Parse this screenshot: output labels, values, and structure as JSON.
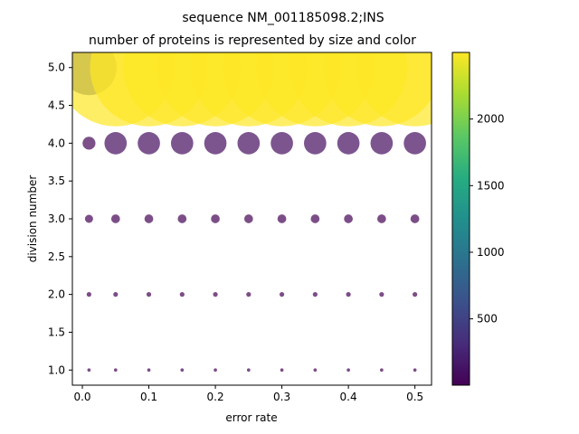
{
  "chart_data": {
    "type": "scatter",
    "title": "sequence NM_001185098.2;INS",
    "subtitle": "number of proteins is represented by size and color",
    "xlabel": "error rate",
    "ylabel": "division number",
    "xlim": [
      -0.015,
      0.525
    ],
    "ylim": [
      0.8,
      5.2
    ],
    "xticks": [
      0.0,
      0.1,
      0.2,
      0.3,
      0.4,
      0.5
    ],
    "xtick_labels": [
      "0.0",
      "0.1",
      "0.2",
      "0.3",
      "0.4",
      "0.5"
    ],
    "yticks": [
      1.0,
      1.5,
      2.0,
      2.5,
      3.0,
      3.5,
      4.0,
      4.5,
      5.0
    ],
    "ytick_labels": [
      "1.0",
      "1.5",
      "2.0",
      "2.5",
      "3.0",
      "3.5",
      "4.0",
      "4.5",
      "5.0"
    ],
    "colorbar": {
      "colormap": "viridis",
      "range": [
        2,
        2500
      ],
      "ticks": [
        500,
        1000,
        1500,
        2000
      ],
      "tick_labels": [
        "500",
        "1000",
        "1500",
        "2000"
      ]
    },
    "marker_alpha": 0.7,
    "grid": false,
    "legend": "none",
    "x": [
      0.01,
      0.05,
      0.1,
      0.15,
      0.2,
      0.25,
      0.3,
      0.35,
      0.4,
      0.45,
      0.5
    ],
    "series": [
      {
        "division": 1,
        "values": [
          2,
          2,
          2,
          2,
          2,
          2,
          2,
          2,
          2,
          2,
          2
        ]
      },
      {
        "division": 2,
        "values": [
          4,
          4,
          4,
          4,
          4,
          4,
          4,
          4,
          4,
          4,
          4
        ]
      },
      {
        "division": 3,
        "values": [
          12,
          14,
          14,
          14,
          14,
          14,
          14,
          14,
          14,
          14,
          14
        ]
      },
      {
        "division": 4,
        "values": [
          30,
          90,
          90,
          90,
          90,
          90,
          90,
          90,
          90,
          90,
          90
        ]
      },
      {
        "division": 5,
        "values": [
          550,
          2500,
          2500,
          2500,
          2500,
          2500,
          2500,
          2500,
          2500,
          2500,
          2500
        ]
      }
    ]
  }
}
